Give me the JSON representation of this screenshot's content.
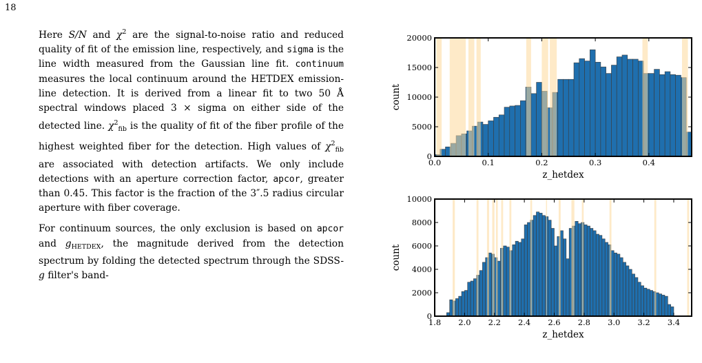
{
  "page_number": "18",
  "paragraphs": [
    {
      "segments": [
        {
          "t": "Here "
        },
        {
          "t": "S/N",
          "s": "it"
        },
        {
          "t": " and "
        },
        {
          "t": "χ",
          "s": "it"
        },
        {
          "t": "2",
          "s": "sup"
        },
        {
          "t": " are the signal-to-noise ratio and reduced quality of fit of the emission line, respectively, and "
        },
        {
          "t": "sigma",
          "s": "mono"
        },
        {
          "t": " is the line width measured from the Gaussian line fit. "
        },
        {
          "t": "continuum",
          "s": "mono"
        },
        {
          "t": " measures the local continuum around the HETDEX emission-line detection. It is derived from a linear fit to two 50 Å spectral windows placed 3 × sigma on either side of the detected line. "
        },
        {
          "t": "χ",
          "s": "it"
        },
        {
          "t": "2",
          "s": "sup"
        },
        {
          "t": "fib",
          "s": "sub"
        },
        {
          "t": " is the quality of fit of the fiber profile of the highest weighted fiber for the detection. High values of "
        },
        {
          "t": "χ",
          "s": "it"
        },
        {
          "t": "2",
          "s": "sup"
        },
        {
          "t": "fib",
          "s": "sub"
        },
        {
          "t": " are associated with detection artifacts. We only include detections with an aperture correction factor, "
        },
        {
          "t": "apcor",
          "s": "mono"
        },
        {
          "t": ", greater than 0.45. This factor is the fraction of the 3″.5 radius circular aperture with fiber coverage."
        }
      ]
    },
    {
      "segments": [
        {
          "t": "For continuum sources, the only exclusion is based on "
        },
        {
          "t": "apcor",
          "s": "mono"
        },
        {
          "t": " and "
        },
        {
          "t": "g",
          "s": "it"
        },
        {
          "t": "HETDEX",
          "s": "sub"
        },
        {
          "t": ", the magnitude derived from the detection spectrum by folding the detected spectrum through the SDSS-"
        },
        {
          "t": "g",
          "s": "it"
        },
        {
          "t": " filter's band-"
        }
      ]
    }
  ],
  "chart_data": [
    {
      "type": "bar",
      "xlabel": "z_hetdex",
      "ylabel": "count",
      "xlim": [
        0.0,
        0.48
      ],
      "ylim": [
        0,
        20000
      ],
      "xticks": [
        "0.0",
        "0.1",
        "0.2",
        "0.3",
        "0.4"
      ],
      "yticks": [
        "0",
        "5000",
        "10000",
        "15000",
        "20000"
      ],
      "bar_color": "#1f6fae",
      "band_color": "#fdd99a",
      "bin_start": 0.0,
      "bin_width": 0.01,
      "values": [
        300,
        1200,
        1600,
        2200,
        3500,
        3800,
        4300,
        5100,
        5800,
        5400,
        6000,
        6600,
        7000,
        8300,
        8500,
        8600,
        9400,
        11700,
        10600,
        12500,
        11000,
        8200,
        10800,
        13000,
        13000,
        13000,
        15800,
        16500,
        16100,
        18000,
        15900,
        15100,
        14000,
        15400,
        16800,
        17100,
        16400,
        16400,
        16100,
        14000,
        14000,
        14700,
        13800,
        14300,
        13800,
        13700,
        13300,
        4100
      ],
      "bands": [
        [
          0.003,
          0.013
        ],
        [
          0.028,
          0.058
        ],
        [
          0.063,
          0.074
        ],
        [
          0.078,
          0.086
        ],
        [
          0.171,
          0.18
        ],
        [
          0.2,
          0.212
        ],
        [
          0.215,
          0.228
        ],
        [
          0.388,
          0.398
        ],
        [
          0.462,
          0.473
        ]
      ]
    },
    {
      "type": "bar",
      "xlabel": "z_hetdex",
      "ylabel": "count",
      "xlim": [
        1.8,
        3.52
      ],
      "ylim": [
        0,
        10000
      ],
      "xticks": [
        "1.8",
        "2.0",
        "2.2",
        "2.4",
        "2.6",
        "2.8",
        "3.0",
        "3.2",
        "3.4"
      ],
      "yticks": [
        "0",
        "2000",
        "4000",
        "6000",
        "8000",
        "10000"
      ],
      "bar_color": "#1f6fae",
      "band_color": "#fdd99a",
      "bin_start": 1.88,
      "bin_width": 0.02,
      "values": [
        300,
        1400,
        1300,
        1500,
        1700,
        2100,
        2200,
        2900,
        3000,
        3200,
        3500,
        3900,
        4600,
        5000,
        5400,
        5300,
        5000,
        4700,
        5800,
        6000,
        5900,
        5600,
        6100,
        6400,
        6300,
        6600,
        7800,
        8000,
        8200,
        8600,
        8900,
        8800,
        8600,
        8500,
        8200,
        7500,
        6000,
        6800,
        7300,
        6600,
        4900,
        7500,
        7700,
        8100,
        7900,
        8000,
        7800,
        7700,
        7500,
        7300,
        7000,
        6900,
        6600,
        6300,
        6100,
        5600,
        5400,
        5300,
        5000,
        4600,
        4300,
        4000,
        3600,
        3300,
        2900,
        2600,
        2400,
        2300,
        2200,
        2100,
        2000,
        1900,
        1800,
        1700,
        1000,
        800
      ],
      "bands": [
        [
          1.92,
          1.935
        ],
        [
          2.08,
          2.093
        ],
        [
          2.15,
          2.164
        ],
        [
          2.185,
          2.2
        ],
        [
          2.21,
          2.222
        ],
        [
          2.245,
          2.258
        ],
        [
          2.3,
          2.313
        ],
        [
          2.44,
          2.452
        ],
        [
          2.545,
          2.552
        ],
        [
          2.63,
          2.643
        ],
        [
          2.715,
          2.735
        ],
        [
          2.785,
          2.797
        ],
        [
          2.97,
          2.983
        ],
        [
          3.27,
          3.283
        ],
        [
          3.49,
          3.503
        ]
      ]
    }
  ]
}
